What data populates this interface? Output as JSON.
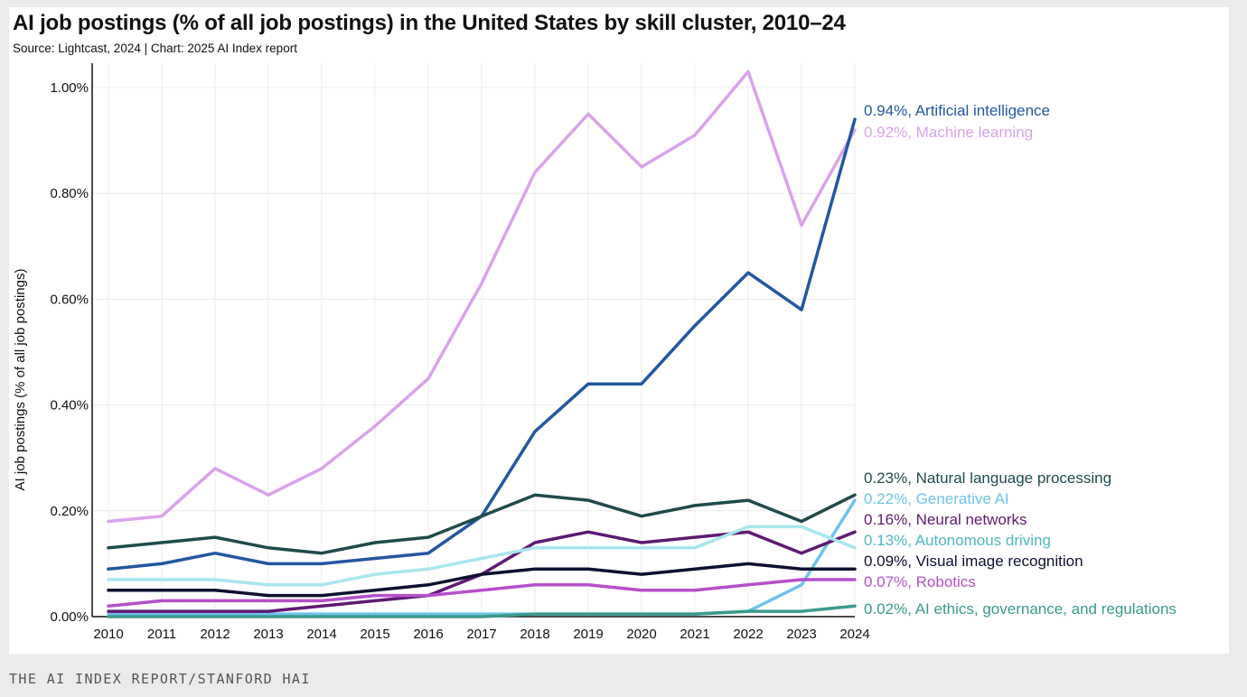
{
  "footer_text": "THE AI INDEX REPORT/STANFORD HAI",
  "chart_data": {
    "type": "line",
    "title": "AI job postings (% of all job postings) in the United States by skill cluster, 2010–24",
    "subtitle": "Source: Lightcast, 2024 | Chart: 2025 AI Index report",
    "xlabel": "",
    "ylabel": "AI job postings (% of all job postings)",
    "ylim": [
      0,
      1.05
    ],
    "yticks": [
      0,
      0.2,
      0.4,
      0.6,
      0.8,
      1.0
    ],
    "ytick_labels": [
      "0.00%",
      "0.20%",
      "0.40%",
      "0.60%",
      "0.80%",
      "1.00%"
    ],
    "grid": "vertical and horizontal light gridlines",
    "legend_placement": "end-of-line labels at right",
    "x": [
      "2010",
      "2011",
      "2012",
      "2013",
      "2014",
      "2015",
      "2016",
      "2017",
      "2018",
      "2019",
      "2020",
      "2021",
      "2022",
      "2023",
      "2024"
    ],
    "series": [
      {
        "name": "Machine learning",
        "label": "0.92%, Machine learning",
        "color": "#d9a3ea",
        "values": [
          0.18,
          0.19,
          0.28,
          0.23,
          0.28,
          0.36,
          0.45,
          0.63,
          0.84,
          0.95,
          0.85,
          0.91,
          1.03,
          0.74,
          0.92
        ]
      },
      {
        "name": "Artificial intelligence",
        "label": "0.94%, Artificial intelligence",
        "color": "#2357a0",
        "values": [
          0.09,
          0.1,
          0.12,
          0.1,
          0.1,
          0.11,
          0.12,
          0.19,
          0.35,
          0.44,
          0.44,
          0.55,
          0.65,
          0.58,
          0.94
        ]
      },
      {
        "name": "Natural language processing",
        "label": "0.23%, Natural language processing",
        "color": "#1f4b4b",
        "values": [
          0.13,
          0.14,
          0.15,
          0.13,
          0.12,
          0.14,
          0.15,
          0.19,
          0.23,
          0.22,
          0.19,
          0.21,
          0.22,
          0.18,
          0.23
        ]
      },
      {
        "name": "Generative AI",
        "label": "0.22%, Generative AI",
        "color": "#6fc3ea",
        "values": [
          0.005,
          0.005,
          0.005,
          0.005,
          0.005,
          0.005,
          0.005,
          0.005,
          0.005,
          0.005,
          0.005,
          0.005,
          0.01,
          0.06,
          0.22
        ]
      },
      {
        "name": "Neural networks",
        "label": "0.16%, Neural networks",
        "color": "#5e1a73",
        "values": [
          0.01,
          0.01,
          0.01,
          0.01,
          0.02,
          0.03,
          0.04,
          0.08,
          0.14,
          0.16,
          0.14,
          0.15,
          0.16,
          0.12,
          0.16
        ]
      },
      {
        "name": "Autonomous driving",
        "label": "0.13%, Autonomous driving",
        "color": "#a8e6ec",
        "values": [
          0.07,
          0.07,
          0.07,
          0.06,
          0.06,
          0.08,
          0.09,
          0.11,
          0.13,
          0.13,
          0.13,
          0.13,
          0.17,
          0.17,
          0.13
        ]
      },
      {
        "name": "Visual image recognition",
        "label": "0.09%, Visual image recognition",
        "color": "#0d1030",
        "values": [
          0.05,
          0.05,
          0.05,
          0.04,
          0.04,
          0.05,
          0.06,
          0.08,
          0.09,
          0.09,
          0.08,
          0.09,
          0.1,
          0.09,
          0.09
        ]
      },
      {
        "name": "Robotics",
        "label": "0.07%, Robotics",
        "color": "#b64fcb",
        "values": [
          0.02,
          0.03,
          0.03,
          0.03,
          0.03,
          0.04,
          0.04,
          0.05,
          0.06,
          0.06,
          0.05,
          0.05,
          0.06,
          0.07,
          0.07
        ]
      },
      {
        "name": "AI ethics, governance, and regulations",
        "label": "0.02%, AI ethics, governance, and regulations",
        "color": "#3a9a8c",
        "values": [
          0.0,
          0.0,
          0.0,
          0.0,
          0.0,
          0.0,
          0.0,
          0.0,
          0.005,
          0.005,
          0.005,
          0.005,
          0.01,
          0.01,
          0.02
        ]
      }
    ],
    "end_labels": [
      {
        "text": "0.94%, Artificial intelligence",
        "color": "#2357a0"
      },
      {
        "text": "0.92%, Machine learning",
        "color": "#d9a3ea"
      },
      {
        "text": "0.23%, Natural language processing",
        "color": "#1f4b4b"
      },
      {
        "text": "0.22%, Generative AI",
        "color": "#6fc3ea"
      },
      {
        "text": "0.16%, Neural networks",
        "color": "#5e1a73"
      },
      {
        "text": "0.13%, Autonomous driving",
        "color": "#4fb8c2"
      },
      {
        "text": "0.09%, Visual image recognition",
        "color": "#0d1030"
      },
      {
        "text": "0.07%, Robotics",
        "color": "#b64fcb"
      },
      {
        "text": "0.02%, AI ethics, governance, and regulations",
        "color": "#3a9a8c"
      }
    ]
  }
}
